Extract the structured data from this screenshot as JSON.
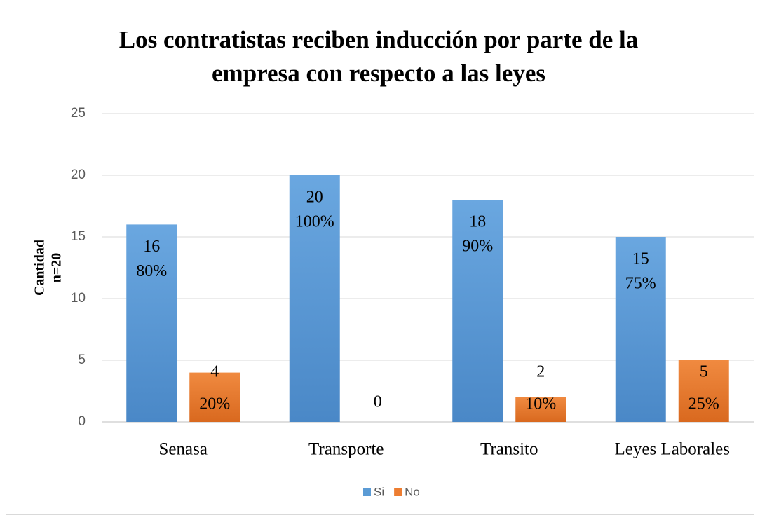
{
  "chart_data": {
    "type": "bar",
    "title": [
      "Los contratistas reciben inducción por parte de la",
      "empresa con respecto a las leyes"
    ],
    "y_label": [
      "Cantidad",
      "n=20"
    ],
    "categories": [
      "Senasa",
      "Transporte",
      "Transito",
      "Leyes Laborales"
    ],
    "series": [
      {
        "name": "Si",
        "color": "#5b9bd5",
        "values": [
          16,
          20,
          18,
          15
        ],
        "percent_labels": [
          "80%",
          "100%",
          "90%",
          "75%"
        ]
      },
      {
        "name": "No",
        "color": "#ed7d31",
        "values": [
          4,
          0,
          2,
          5
        ],
        "percent_labels": [
          "20%",
          null,
          "10%",
          "25%"
        ]
      }
    ],
    "ylim": [
      0,
      25
    ],
    "yticks": [
      0,
      5,
      10,
      15,
      20,
      25
    ],
    "grid": true,
    "legend": "bottom"
  }
}
